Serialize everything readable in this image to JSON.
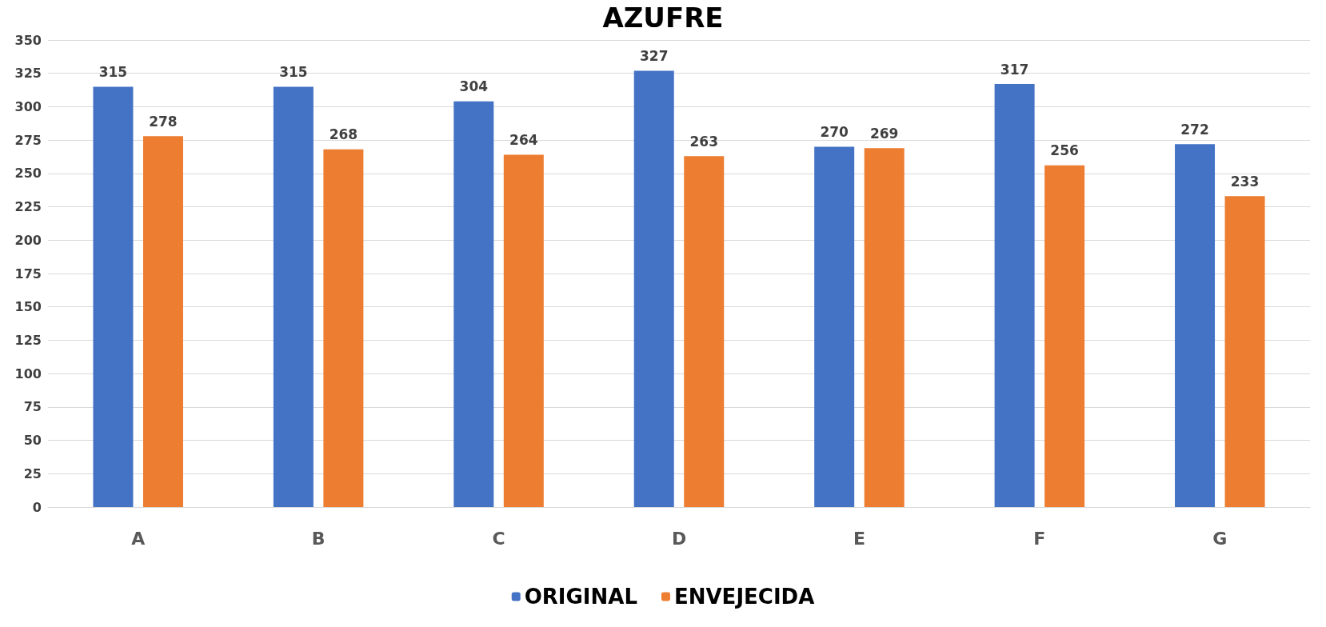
{
  "chart_data": {
    "type": "bar",
    "title": "AZUFRE",
    "categories": [
      "A",
      "B",
      "C",
      "D",
      "E",
      "F",
      "G"
    ],
    "series": [
      {
        "name": "ORIGINAL",
        "color": "#4472c4",
        "values": [
          315,
          315,
          304,
          327,
          270,
          317,
          272
        ]
      },
      {
        "name": "ENVEJECIDA",
        "color": "#ed7d31",
        "values": [
          278,
          268,
          264,
          263,
          269,
          256,
          233
        ]
      }
    ],
    "ylim": [
      0,
      350
    ],
    "yticks": [
      0,
      25,
      50,
      75,
      100,
      125,
      150,
      175,
      200,
      225,
      250,
      275,
      300,
      325,
      350
    ],
    "grid": "y",
    "legend": "bottom",
    "data_labels": true
  }
}
